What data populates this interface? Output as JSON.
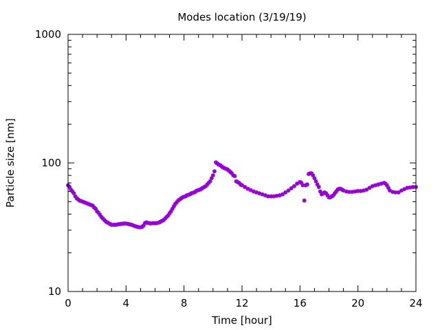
{
  "chart_data": {
    "type": "scatter",
    "title": "Modes location (3/19/19)",
    "xlabel": "Time [hour]",
    "ylabel": "Particle size [nm]",
    "xlim": [
      0,
      24
    ],
    "ylim": [
      10,
      1000
    ],
    "yscale": "log",
    "grid": false,
    "legend": "none",
    "marker_color": "#9400d3",
    "x_ticks": [
      0,
      4,
      8,
      12,
      16,
      20,
      24
    ],
    "x_tick_labels": [
      "0",
      "4",
      "8",
      "12",
      "16",
      "20",
      "24"
    ],
    "y_ticks": [
      10,
      100,
      1000
    ],
    "y_tick_labels": [
      "10",
      "100",
      "1000"
    ],
    "series": [
      {
        "points": [
          [
            0.0,
            67
          ],
          [
            0.1,
            65
          ],
          [
            0.2,
            62
          ],
          [
            0.3,
            60
          ],
          [
            0.4,
            58
          ],
          [
            0.5,
            55
          ],
          [
            0.6,
            53
          ],
          [
            0.7,
            52
          ],
          [
            0.8,
            51
          ],
          [
            0.9,
            50.5
          ],
          [
            1.0,
            50
          ],
          [
            1.1,
            49.5
          ],
          [
            1.2,
            49
          ],
          [
            1.3,
            48.5
          ],
          [
            1.4,
            48
          ],
          [
            1.5,
            47.5
          ],
          [
            1.6,
            47
          ],
          [
            1.7,
            46.5
          ],
          [
            1.8,
            45
          ],
          [
            1.9,
            44
          ],
          [
            2.0,
            42
          ],
          [
            2.1,
            41
          ],
          [
            2.2,
            39.5
          ],
          [
            2.3,
            38
          ],
          [
            2.4,
            37
          ],
          [
            2.5,
            36
          ],
          [
            2.6,
            35
          ],
          [
            2.7,
            34.5
          ],
          [
            2.8,
            34
          ],
          [
            2.9,
            33.5
          ],
          [
            3.0,
            33
          ],
          [
            3.1,
            33
          ],
          [
            3.2,
            33
          ],
          [
            3.3,
            33
          ],
          [
            3.4,
            33.2
          ],
          [
            3.5,
            33.4
          ],
          [
            3.6,
            33.5
          ],
          [
            3.7,
            33.6
          ],
          [
            3.8,
            33.7
          ],
          [
            3.9,
            33.8
          ],
          [
            4.0,
            33.8
          ],
          [
            4.1,
            33.6
          ],
          [
            4.2,
            33.4
          ],
          [
            4.3,
            33.2
          ],
          [
            4.4,
            33
          ],
          [
            4.5,
            32.6
          ],
          [
            4.6,
            32.3
          ],
          [
            4.7,
            32
          ],
          [
            4.8,
            31.8
          ],
          [
            4.9,
            31.6
          ],
          [
            5.0,
            31.6
          ],
          [
            5.1,
            31.8
          ],
          [
            5.2,
            32.5
          ],
          [
            5.3,
            34
          ],
          [
            5.4,
            34.5
          ],
          [
            5.5,
            34.2
          ],
          [
            5.6,
            34
          ],
          [
            5.7,
            33.8
          ],
          [
            5.8,
            34
          ],
          [
            5.9,
            34
          ],
          [
            6.0,
            34
          ],
          [
            6.1,
            34
          ],
          [
            6.2,
            34.2
          ],
          [
            6.3,
            34.5
          ],
          [
            6.4,
            35
          ],
          [
            6.5,
            35.5
          ],
          [
            6.6,
            36
          ],
          [
            6.7,
            37
          ],
          [
            6.8,
            38
          ],
          [
            6.9,
            39
          ],
          [
            7.0,
            40.5
          ],
          [
            7.1,
            42
          ],
          [
            7.2,
            44
          ],
          [
            7.3,
            46
          ],
          [
            7.4,
            48
          ],
          [
            7.5,
            49.5
          ],
          [
            7.6,
            51
          ],
          [
            7.7,
            52
          ],
          [
            7.8,
            53
          ],
          [
            7.9,
            54
          ],
          [
            8.0,
            54.5
          ],
          [
            8.1,
            55
          ],
          [
            8.2,
            56
          ],
          [
            8.3,
            56.5
          ],
          [
            8.4,
            57
          ],
          [
            8.5,
            58
          ],
          [
            8.6,
            58.5
          ],
          [
            8.7,
            59
          ],
          [
            8.8,
            60
          ],
          [
            8.9,
            61
          ],
          [
            9.0,
            61.5
          ],
          [
            9.1,
            62
          ],
          [
            9.2,
            63
          ],
          [
            9.3,
            64
          ],
          [
            9.4,
            65
          ],
          [
            9.5,
            66
          ],
          [
            9.6,
            68
          ],
          [
            9.7,
            70
          ],
          [
            9.8,
            72
          ],
          [
            9.9,
            76
          ],
          [
            10.0,
            80
          ],
          [
            10.1,
            86
          ],
          [
            10.2,
            101
          ],
          [
            10.3,
            99
          ],
          [
            10.4,
            97
          ],
          [
            10.5,
            96
          ],
          [
            10.6,
            94
          ],
          [
            10.7,
            92
          ],
          [
            10.8,
            91
          ],
          [
            10.9,
            90
          ],
          [
            11.0,
            89
          ],
          [
            11.1,
            87
          ],
          [
            11.2,
            85
          ],
          [
            11.3,
            83
          ],
          [
            11.4,
            80
          ],
          [
            11.5,
            79
          ],
          [
            11.6,
            72
          ],
          [
            11.7,
            71
          ],
          [
            11.8,
            70
          ],
          [
            11.9,
            68
          ],
          [
            12.0,
            67
          ],
          [
            12.2,
            65
          ],
          [
            12.4,
            63
          ],
          [
            12.6,
            61.5
          ],
          [
            12.8,
            60
          ],
          [
            13.0,
            59
          ],
          [
            13.2,
            58
          ],
          [
            13.4,
            57
          ],
          [
            13.6,
            56
          ],
          [
            13.8,
            55
          ],
          [
            14.0,
            55
          ],
          [
            14.2,
            55
          ],
          [
            14.4,
            55.5
          ],
          [
            14.6,
            56
          ],
          [
            14.8,
            57
          ],
          [
            15.0,
            59
          ],
          [
            15.2,
            61
          ],
          [
            15.4,
            63.5
          ],
          [
            15.6,
            66
          ],
          [
            15.8,
            69
          ],
          [
            16.0,
            71
          ],
          [
            16.1,
            70
          ],
          [
            16.2,
            67
          ],
          [
            16.3,
            51
          ],
          [
            16.4,
            67
          ],
          [
            16.5,
            68
          ],
          [
            16.6,
            82
          ],
          [
            16.7,
            83
          ],
          [
            16.8,
            83
          ],
          [
            16.9,
            80
          ],
          [
            17.0,
            76
          ],
          [
            17.1,
            72
          ],
          [
            17.2,
            68
          ],
          [
            17.3,
            65
          ],
          [
            17.4,
            60
          ],
          [
            17.5,
            57
          ],
          [
            17.6,
            58
          ],
          [
            17.7,
            59
          ],
          [
            17.8,
            58
          ],
          [
            17.9,
            56
          ],
          [
            18.0,
            54
          ],
          [
            18.1,
            54
          ],
          [
            18.2,
            55
          ],
          [
            18.3,
            56
          ],
          [
            18.4,
            58
          ],
          [
            18.5,
            60
          ],
          [
            18.6,
            62
          ],
          [
            18.7,
            63
          ],
          [
            18.8,
            63
          ],
          [
            18.9,
            62
          ],
          [
            19.0,
            61
          ],
          [
            19.2,
            60
          ],
          [
            19.4,
            59.5
          ],
          [
            19.6,
            59.5
          ],
          [
            19.8,
            60
          ],
          [
            20.0,
            60.5
          ],
          [
            20.2,
            60.5
          ],
          [
            20.4,
            61
          ],
          [
            20.6,
            62
          ],
          [
            20.8,
            64
          ],
          [
            21.0,
            66
          ],
          [
            21.2,
            67
          ],
          [
            21.4,
            68
          ],
          [
            21.6,
            69
          ],
          [
            21.8,
            70
          ],
          [
            21.9,
            69
          ],
          [
            22.0,
            67
          ],
          [
            22.1,
            64
          ],
          [
            22.2,
            61
          ],
          [
            22.4,
            59.5
          ],
          [
            22.6,
            59
          ],
          [
            22.8,
            59
          ],
          [
            23.0,
            61
          ],
          [
            23.2,
            62.5
          ],
          [
            23.4,
            64
          ],
          [
            23.6,
            64.5
          ],
          [
            23.8,
            65
          ],
          [
            24.0,
            65
          ]
        ]
      }
    ]
  }
}
